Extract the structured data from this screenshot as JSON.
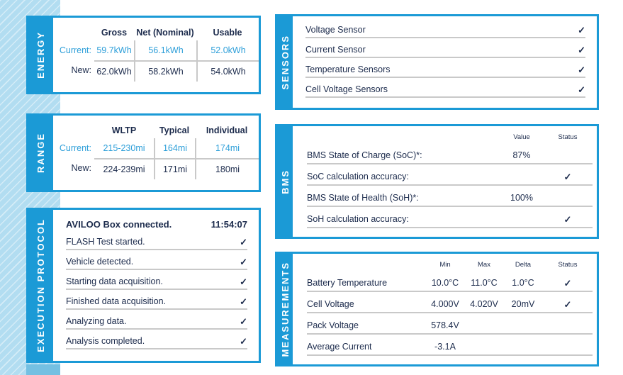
{
  "check_glyph": "✓",
  "colors": {
    "accent_blue": "#1b9ad6",
    "text_navy": "#1c2b4c",
    "highlight_blue": "#2e9fd9",
    "band_blue": "#b2ddf1",
    "line_gray": "#c9c9c9"
  },
  "panels": {
    "energy": {
      "label": "ENERGY",
      "columns": [
        "Gross",
        "Net (Nominal)",
        "Usable"
      ],
      "rows": [
        {
          "label": "Current:",
          "values": [
            "59.7kWh",
            "56.1kWh",
            "52.0kWh"
          ]
        },
        {
          "label": "New:",
          "values": [
            "62.0kWh",
            "58.2kWh",
            "54.0kWh"
          ]
        }
      ]
    },
    "range": {
      "label": "RANGE",
      "columns": [
        "WLTP",
        "Typical",
        "Individual"
      ],
      "rows": [
        {
          "label": "Current:",
          "values": [
            "215-230mi",
            "164mi",
            "174mi"
          ]
        },
        {
          "label": "New:",
          "values": [
            "224-239mi",
            "171mi",
            "180mi"
          ]
        }
      ]
    },
    "protocol": {
      "label": "EXECUTION PROTOCOL",
      "header": {
        "text": "AVILOO Box connected.",
        "time": "11:54:07"
      },
      "items": [
        "FLASH Test started.",
        "Vehicle detected.",
        "Starting data acquisition.",
        "Finished data acquisition.",
        "Analyzing data.",
        "Analysis completed."
      ]
    },
    "sensors": {
      "label": "SENSORS",
      "items": [
        "Voltage Sensor",
        "Current Sensor",
        "Temperature Sensors",
        "Cell Voltage Sensors"
      ]
    },
    "bms": {
      "label": "BMS",
      "headers": [
        "Value",
        "Status"
      ],
      "rows": [
        {
          "label": "BMS State of Charge (SoC)*:",
          "value": "87%",
          "checked": false
        },
        {
          "label": "SoC calculation accuracy:",
          "value": "",
          "checked": true
        },
        {
          "label": "BMS State of Health (SoH)*:",
          "value": "100%",
          "checked": false
        },
        {
          "label": "SoH calculation accuracy:",
          "value": "",
          "checked": true
        }
      ]
    },
    "measurements": {
      "label": "MEASUREMENTS",
      "headers": [
        "Min",
        "Max",
        "Delta",
        "Status"
      ],
      "rows": [
        {
          "label": "Battery Temperature",
          "min": "10.0°C",
          "max": "11.0°C",
          "delta": "1.0°C",
          "checked": true
        },
        {
          "label": "Cell Voltage",
          "min": "4.000V",
          "max": "4.020V",
          "delta": "20mV",
          "checked": true
        },
        {
          "label": "Pack Voltage",
          "min": "578.4V",
          "max": "",
          "delta": "",
          "checked": false
        },
        {
          "label": "Average Current",
          "min": "-3.1A",
          "max": "",
          "delta": "",
          "checked": false
        }
      ]
    }
  }
}
